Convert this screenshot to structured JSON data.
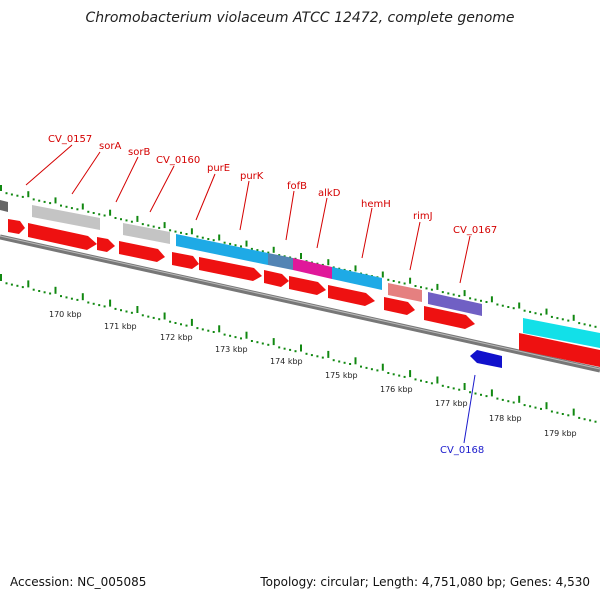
{
  "title": "Chromobacterium violaceum ATCC 12472, complete genome",
  "footer": {
    "accession": "Accession: NC_005085",
    "topology": "Topology: circular; Length: 4,751,080 bp; Genes: 4,530"
  },
  "colors": {
    "cds_forward": "#ee1111",
    "cds_reverse": "#1111cc",
    "backbone": "#777777",
    "tick": "#118811",
    "label_forward": "#d40000",
    "label_reverse": "#1a1acc"
  },
  "scale": {
    "unit": "kbp",
    "ticks": [
      {
        "label": "170 kbp"
      },
      {
        "label": "171 kbp"
      },
      {
        "label": "172 kbp"
      },
      {
        "label": "173 kbp"
      },
      {
        "label": "174 kbp"
      },
      {
        "label": "175 kbp"
      },
      {
        "label": "176 kbp"
      },
      {
        "label": "177 kbp"
      },
      {
        "label": "178 kbp"
      },
      {
        "label": "179 kbp"
      }
    ]
  },
  "gene_labels": {
    "forward": [
      "CV_0157",
      "sorA",
      "sorB",
      "CV_0160",
      "purE",
      "purK",
      "fofB",
      "alkD",
      "hemH",
      "rimJ",
      "CV_0167"
    ],
    "reverse": [
      "CV_0168"
    ]
  }
}
